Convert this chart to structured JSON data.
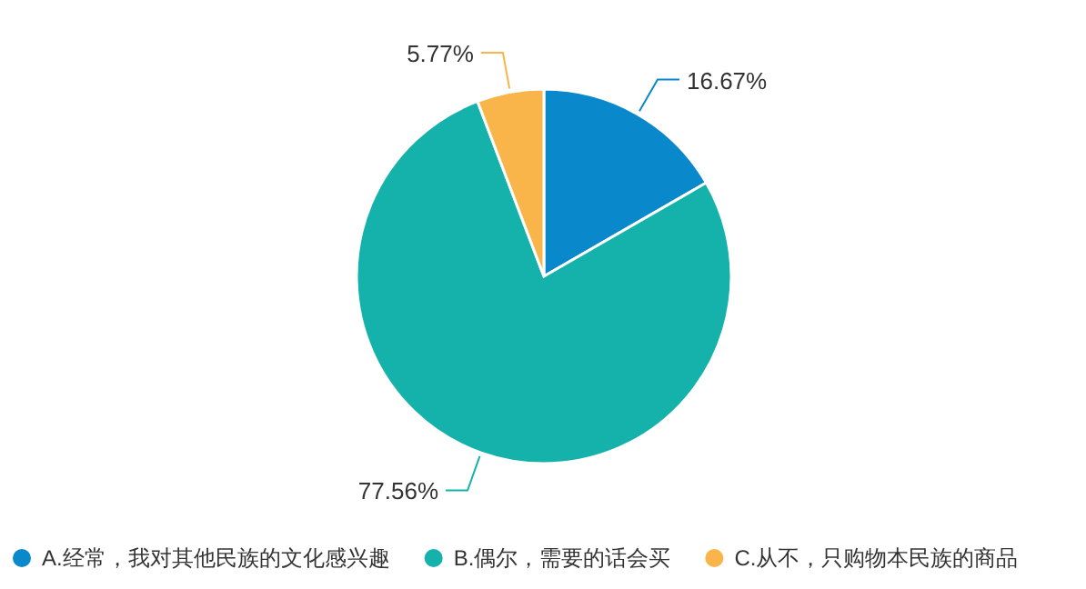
{
  "chart_data": {
    "type": "pie",
    "categories": [
      "A.经常，我对其他民族的文化感兴趣",
      "B.偶尔，需要的话会买",
      "C.从不，只购物本民族的商品"
    ],
    "values": [
      16.67,
      77.56,
      5.77
    ],
    "colors": [
      "#0a88cc",
      "#14b2aa",
      "#f9b54a"
    ],
    "value_labels": [
      "16.67%",
      "77.56%",
      "5.77%"
    ],
    "legend": "bottom"
  }
}
